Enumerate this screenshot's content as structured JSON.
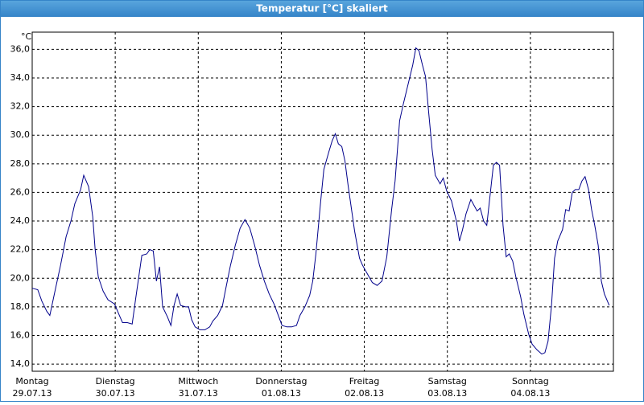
{
  "chart_data": {
    "type": "line",
    "title": "Temperatur [°C] skaliert",
    "y_label": "°C",
    "x": [
      0,
      1.6,
      2.8,
      4.2,
      5.1,
      6.5,
      8.2,
      9.8,
      11.2,
      12.3,
      14.0,
      14.9,
      16.3,
      17.5,
      18.2,
      19.1,
      20.5,
      21.9,
      23.8,
      25.2,
      26.1,
      27.5,
      28.9,
      29.8,
      30.8,
      31.7,
      33.1,
      34.0,
      35.0,
      35.9,
      36.8,
      37.7,
      39.1,
      40.1,
      41.0,
      41.9,
      42.9,
      44.3,
      45.2,
      46.1,
      47.1,
      48.5,
      49.9,
      51.3,
      52.2,
      53.6,
      55.0,
      55.9,
      57.3,
      58.7,
      60.1,
      61.5,
      62.9,
      64.3,
      65.7,
      67.1,
      68.5,
      69.9,
      71.3,
      72.2,
      73.6,
      75.0,
      76.4,
      77.4,
      78.8,
      80.2,
      81.1,
      82.0,
      83.4,
      84.3,
      85.7,
      86.7,
      87.6,
      88.5,
      89.5,
      90.4,
      91.3,
      92.3,
      93.2,
      94.6,
      95.5,
      96.9,
      98.3,
      99.7,
      101.1,
      102.5,
      103.9,
      104.9,
      106.2,
      107.2,
      108.6,
      110.0,
      110.9,
      111.8,
      112.8,
      113.7,
      114.6,
      115.6,
      116.5,
      117.9,
      118.8,
      119.8,
      121.2,
      122.6,
      123.5,
      124.4,
      125.4,
      126.8,
      127.7,
      128.6,
      129.5,
      130.5,
      131.4,
      132.3,
      133.3,
      134.2,
      135.1,
      136.1,
      137.0,
      137.9,
      138.9,
      139.8,
      141.2,
      142.1,
      143.5,
      144.5,
      145.9,
      147.3,
      148.2,
      149.1,
      150.1,
      151.0,
      151.9,
      153.3,
      154.2,
      155.2,
      156.1,
      157.0,
      158.0,
      158.9,
      159.8,
      160.8,
      161.7,
      162.6,
      163.6,
      164.5,
      165.4,
      166.8
    ],
    "values": [
      19.3,
      19.2,
      18.4,
      17.7,
      17.4,
      19.0,
      20.9,
      22.9,
      24.0,
      25.2,
      26.2,
      27.2,
      26.4,
      24.3,
      22.0,
      20.1,
      19.1,
      18.5,
      18.2,
      17.4,
      16.9,
      16.9,
      16.8,
      18.4,
      20.1,
      21.6,
      21.7,
      22.0,
      21.9,
      19.8,
      20.8,
      18.0,
      17.3,
      16.7,
      18.1,
      18.9,
      18.1,
      18.0,
      18.0,
      17.1,
      16.6,
      16.4,
      16.4,
      16.6,
      17.0,
      17.4,
      18.1,
      19.2,
      20.9,
      22.3,
      23.5,
      24.1,
      23.5,
      22.3,
      20.9,
      19.8,
      18.9,
      18.2,
      17.3,
      16.7,
      16.6,
      16.6,
      16.7,
      17.4,
      18.0,
      18.8,
      19.8,
      21.7,
      25.4,
      27.6,
      28.8,
      29.6,
      30.1,
      29.4,
      29.2,
      28.2,
      26.5,
      24.8,
      23.3,
      21.4,
      20.9,
      20.3,
      19.7,
      19.5,
      19.8,
      21.5,
      24.8,
      26.8,
      31.0,
      32.1,
      33.5,
      34.9,
      36.1,
      35.9,
      34.9,
      34.1,
      31.6,
      29.0,
      27.2,
      26.6,
      27.0,
      26.1,
      25.4,
      24.0,
      22.6,
      23.4,
      24.5,
      25.5,
      25.1,
      24.7,
      24.9,
      24.0,
      23.7,
      25.7,
      27.9,
      28.1,
      27.9,
      23.7,
      21.5,
      21.7,
      21.2,
      20.1,
      18.7,
      17.5,
      16.1,
      15.4,
      15.0,
      14.7,
      14.8,
      15.6,
      18.1,
      21.4,
      22.6,
      23.4,
      24.8,
      24.7,
      26.0,
      26.2,
      26.2,
      26.8,
      27.1,
      26.2,
      24.8,
      23.7,
      22.3,
      19.8,
      18.9,
      18.1
    ],
    "color": "#00008b",
    "xlim": [
      0,
      168
    ],
    "xticks": [
      {
        "value": 0,
        "label": "Montag",
        "date": "29.07.13"
      },
      {
        "value": 24,
        "label": "Dienstag",
        "date": "30.07.13"
      },
      {
        "value": 48,
        "label": "Mittwoch",
        "date": "31.07.13"
      },
      {
        "value": 72,
        "label": "Donnerstag",
        "date": "01.08.13"
      },
      {
        "value": 96,
        "label": "Freitag",
        "date": "02.08.13"
      },
      {
        "value": 120,
        "label": "Samstag",
        "date": "03.08.13"
      },
      {
        "value": 144,
        "label": "Sonntag",
        "date": "04.08.13"
      }
    ],
    "ylim": [
      13.5,
      37.2
    ],
    "yticks": [
      {
        "value": 14,
        "label": "14,0"
      },
      {
        "value": 16,
        "label": "16,0"
      },
      {
        "value": 18,
        "label": "18,0"
      },
      {
        "value": 20,
        "label": "20,0"
      },
      {
        "value": 22,
        "label": "22,0"
      },
      {
        "value": 24,
        "label": "24,0"
      },
      {
        "value": 26,
        "label": "26,0"
      },
      {
        "value": 28,
        "label": "28,0"
      },
      {
        "value": 30,
        "label": "30,0"
      },
      {
        "value": 32,
        "label": "32,0"
      },
      {
        "value": 34,
        "label": "34,0"
      },
      {
        "value": 36,
        "label": "36,0"
      }
    ],
    "grid": true
  }
}
